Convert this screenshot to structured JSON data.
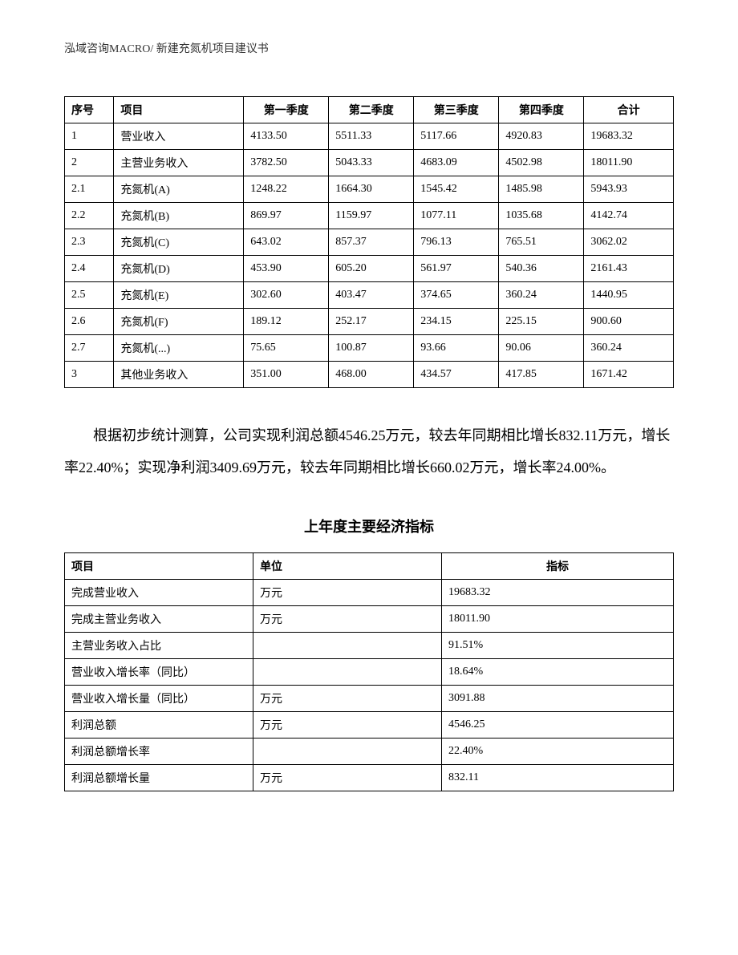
{
  "header": {
    "text": "泓域咨询MACRO/    新建充氮机项目建议书"
  },
  "table1": {
    "headers": [
      "序号",
      "项目",
      "第一季度",
      "第二季度",
      "第三季度",
      "第四季度",
      "合计"
    ],
    "rows": [
      [
        "1",
        "营业收入",
        "4133.50",
        "5511.33",
        "5117.66",
        "4920.83",
        "19683.32"
      ],
      [
        "2",
        "主营业务收入",
        "3782.50",
        "5043.33",
        "4683.09",
        "4502.98",
        "18011.90"
      ],
      [
        "2.1",
        "充氮机(A)",
        "1248.22",
        "1664.30",
        "1545.42",
        "1485.98",
        "5943.93"
      ],
      [
        "2.2",
        "充氮机(B)",
        "869.97",
        "1159.97",
        "1077.11",
        "1035.68",
        "4142.74"
      ],
      [
        "2.3",
        "充氮机(C)",
        "643.02",
        "857.37",
        "796.13",
        "765.51",
        "3062.02"
      ],
      [
        "2.4",
        "充氮机(D)",
        "453.90",
        "605.20",
        "561.97",
        "540.36",
        "2161.43"
      ],
      [
        "2.5",
        "充氮机(E)",
        "302.60",
        "403.47",
        "374.65",
        "360.24",
        "1440.95"
      ],
      [
        "2.6",
        "充氮机(F)",
        "189.12",
        "252.17",
        "234.15",
        "225.15",
        "900.60"
      ],
      [
        "2.7",
        "充氮机(...)",
        "75.65",
        "100.87",
        "93.66",
        "90.06",
        "360.24"
      ],
      [
        "3",
        "其他业务收入",
        "351.00",
        "468.00",
        "434.57",
        "417.85",
        "1671.42"
      ]
    ]
  },
  "paragraph": {
    "text": "根据初步统计测算，公司实现利润总额4546.25万元，较去年同期相比增长832.11万元，增长率22.40%；实现净利润3409.69万元，较去年同期相比增长660.02万元，增长率24.00%。"
  },
  "section_title": "上年度主要经济指标",
  "table2": {
    "headers": [
      "项目",
      "单位",
      "指标"
    ],
    "rows": [
      [
        "完成营业收入",
        "万元",
        "19683.32"
      ],
      [
        "完成主营业务收入",
        "万元",
        "18011.90"
      ],
      [
        "主营业务收入占比",
        "",
        "91.51%"
      ],
      [
        "营业收入增长率（同比）",
        "",
        "18.64%"
      ],
      [
        "营业收入增长量（同比）",
        "万元",
        "3091.88"
      ],
      [
        "利润总额",
        "万元",
        "4546.25"
      ],
      [
        "利润总额增长率",
        "",
        "22.40%"
      ],
      [
        "利润总额增长量",
        "万元",
        "832.11"
      ]
    ]
  }
}
